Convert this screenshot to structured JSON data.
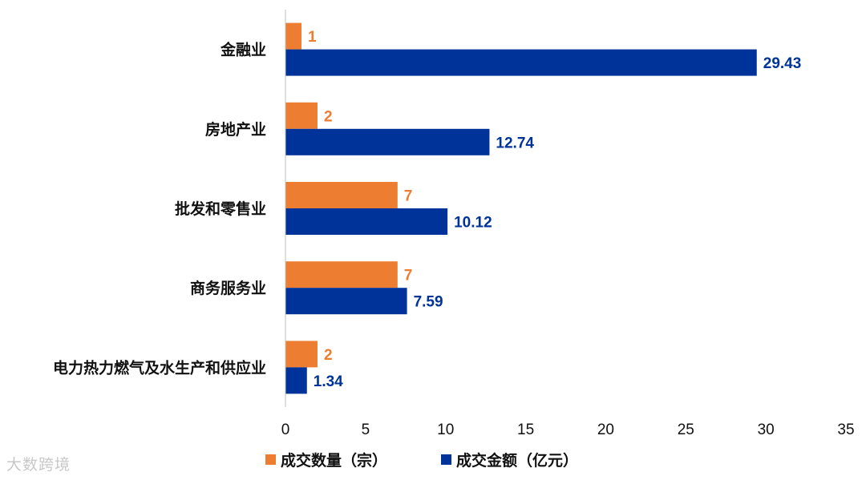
{
  "chart_data": {
    "type": "bar",
    "orientation": "horizontal",
    "categories": [
      "金融业",
      "房地产业",
      "批发和零售业",
      "商务服务业",
      "电力热力燃气及水生产和供应业"
    ],
    "series": [
      {
        "name": "成交数量（宗）",
        "values": [
          1,
          2,
          7,
          7,
          2
        ],
        "labels": [
          "1",
          "2",
          "7",
          "7",
          "2"
        ],
        "color": "#ED7D31"
      },
      {
        "name": "成交金额（亿元）",
        "values": [
          29.43,
          12.74,
          10.12,
          7.59,
          1.34
        ],
        "labels": [
          "29.43",
          "12.74",
          "10.12",
          "7.59",
          "1.34"
        ],
        "color": "#003399"
      }
    ],
    "xlim": [
      0,
      35
    ],
    "xticks": [
      "0",
      "5",
      "10",
      "15",
      "20",
      "25",
      "30",
      "35"
    ],
    "grid": false,
    "legend_position": "bottom"
  },
  "watermark": "大数跨境"
}
